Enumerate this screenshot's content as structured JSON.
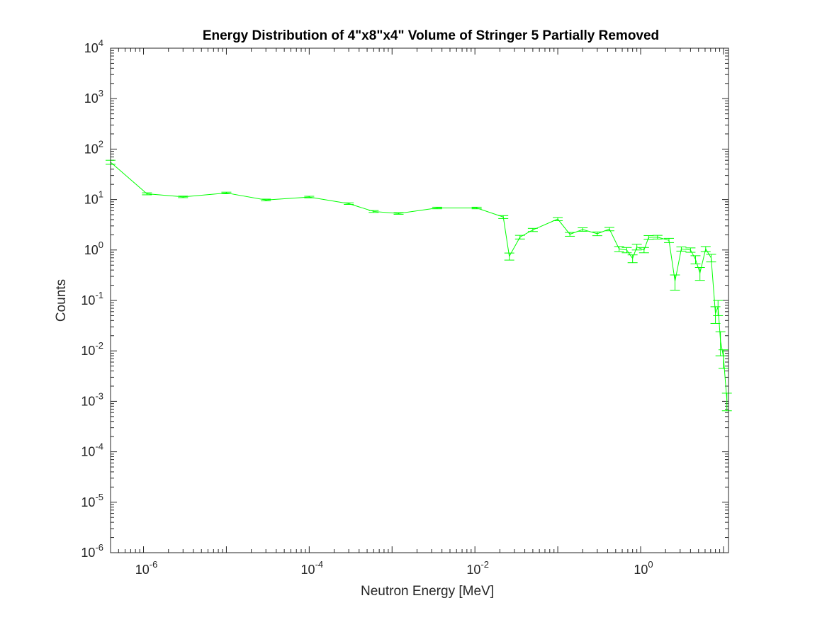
{
  "chart_data": {
    "type": "line",
    "title": "Energy Distribution of 4\"x8\"x4\" Volume of Stringer 5 Partially Removed",
    "xlabel": "Neutron Energy [MeV]",
    "ylabel": "Counts",
    "xscale": "log",
    "yscale": "log",
    "xlim": [
      4e-07,
      11.5
    ],
    "ylim": [
      1e-06,
      10000.0
    ],
    "x_ticks": [
      {
        "base": "10",
        "exp": "-6",
        "value": 1e-06
      },
      {
        "base": "10",
        "exp": "-4",
        "value": 0.0001
      },
      {
        "base": "10",
        "exp": "-2",
        "value": 0.01
      },
      {
        "base": "10",
        "exp": "0",
        "value": 1
      }
    ],
    "y_ticks": [
      {
        "base": "10",
        "exp": "-6",
        "value": 1e-06
      },
      {
        "base": "10",
        "exp": "-5",
        "value": 1e-05
      },
      {
        "base": "10",
        "exp": "-4",
        "value": 0.0001
      },
      {
        "base": "10",
        "exp": "-3",
        "value": 0.001
      },
      {
        "base": "10",
        "exp": "-2",
        "value": 0.01
      },
      {
        "base": "10",
        "exp": "-1",
        "value": 0.1
      },
      {
        "base": "10",
        "exp": "0",
        "value": 1
      },
      {
        "base": "10",
        "exp": "1",
        "value": 10
      },
      {
        "base": "10",
        "exp": "2",
        "value": 100
      },
      {
        "base": "10",
        "exp": "3",
        "value": 1000
      },
      {
        "base": "10",
        "exp": "4",
        "value": 10000
      }
    ],
    "grid": false,
    "line_color": "#00ff00",
    "series": [
      {
        "x": [
          4e-07,
          1.1e-06,
          3e-06,
          1e-05,
          3e-05,
          0.0001,
          0.0003,
          0.0006,
          0.0012,
          0.0035,
          0.0105,
          0.022,
          0.026,
          0.035,
          0.05,
          0.1,
          0.14,
          0.2,
          0.3,
          0.42,
          0.55,
          0.68,
          0.8,
          0.9,
          1.1,
          1.25,
          1.6,
          2.2,
          2.6,
          3.1,
          4.0,
          4.6,
          5.2,
          6.1,
          7.1,
          8.0,
          8.6,
          9.2,
          10.0,
          11.0
        ],
        "y": [
          55,
          13,
          11.3,
          13.5,
          9.8,
          11.2,
          8.3,
          5.8,
          5.3,
          6.8,
          6.8,
          4.5,
          0.75,
          1.8,
          2.5,
          4.1,
          2.05,
          2.55,
          2.1,
          2.6,
          1.05,
          1.0,
          0.68,
          1.15,
          1.0,
          1.78,
          1.8,
          1.55,
          0.24,
          1.05,
          1.0,
          0.65,
          0.35,
          1.05,
          0.7,
          0.055,
          0.075,
          0.016,
          0.0075,
          0.00105
        ],
        "yerr": [
          5,
          0.6,
          0.4,
          0.5,
          0.4,
          0.4,
          0.3,
          0.25,
          0.2,
          0.25,
          0.25,
          0.3,
          0.12,
          0.15,
          0.18,
          0.3,
          0.18,
          0.2,
          0.18,
          0.2,
          0.12,
          0.12,
          0.12,
          0.15,
          0.12,
          0.15,
          0.15,
          0.15,
          0.08,
          0.1,
          0.1,
          0.12,
          0.1,
          0.12,
          0.12,
          0.02,
          0.025,
          0.008,
          0.003,
          0.0004
        ]
      }
    ]
  }
}
